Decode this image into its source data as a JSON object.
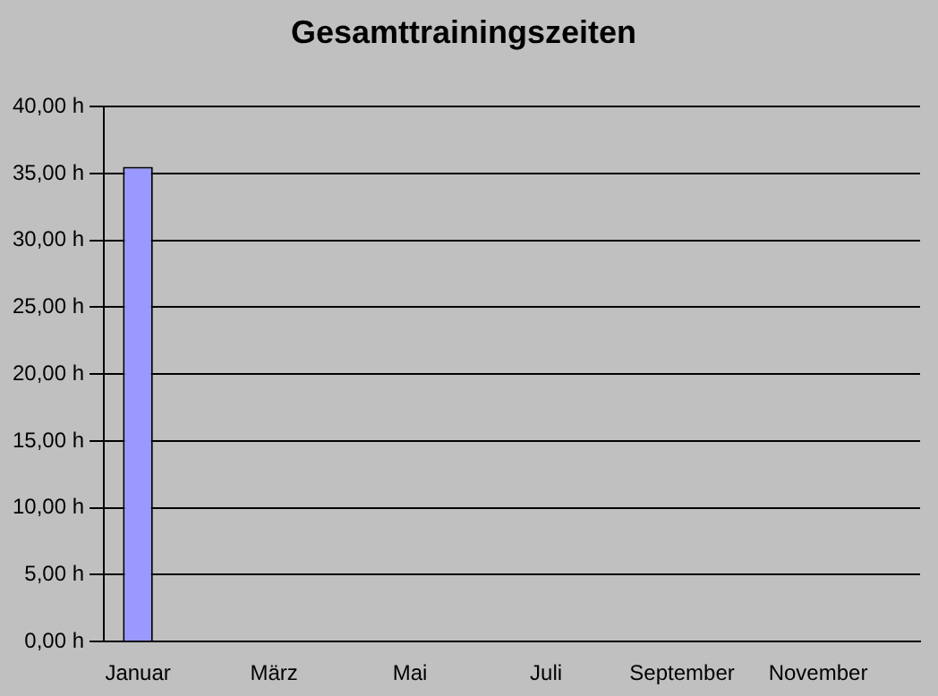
{
  "chart_data": {
    "type": "bar",
    "title": "Gesamttrainingszeiten",
    "categories": [
      "Januar",
      null,
      "März",
      null,
      "Mai",
      null,
      "Juli",
      null,
      "September",
      null,
      "November",
      null
    ],
    "values": [
      35.5,
      0,
      0,
      0,
      0,
      0,
      0,
      0,
      0,
      0,
      0,
      0
    ],
    "color": "#9999ff",
    "ylim": [
      0,
      40
    ],
    "yticks": [
      {
        "value": 0,
        "label": "0,00 h"
      },
      {
        "value": 5,
        "label": "5,00 h"
      },
      {
        "value": 10,
        "label": "10,00 h"
      },
      {
        "value": 15,
        "label": "15,00 h"
      },
      {
        "value": 20,
        "label": "20,00 h"
      },
      {
        "value": 25,
        "label": "25,00 h"
      },
      {
        "value": 30,
        "label": "30,00 h"
      },
      {
        "value": 35,
        "label": "35,00 h"
      },
      {
        "value": 40,
        "label": "40,00 h"
      }
    ],
    "grid": "y",
    "legend": false
  }
}
